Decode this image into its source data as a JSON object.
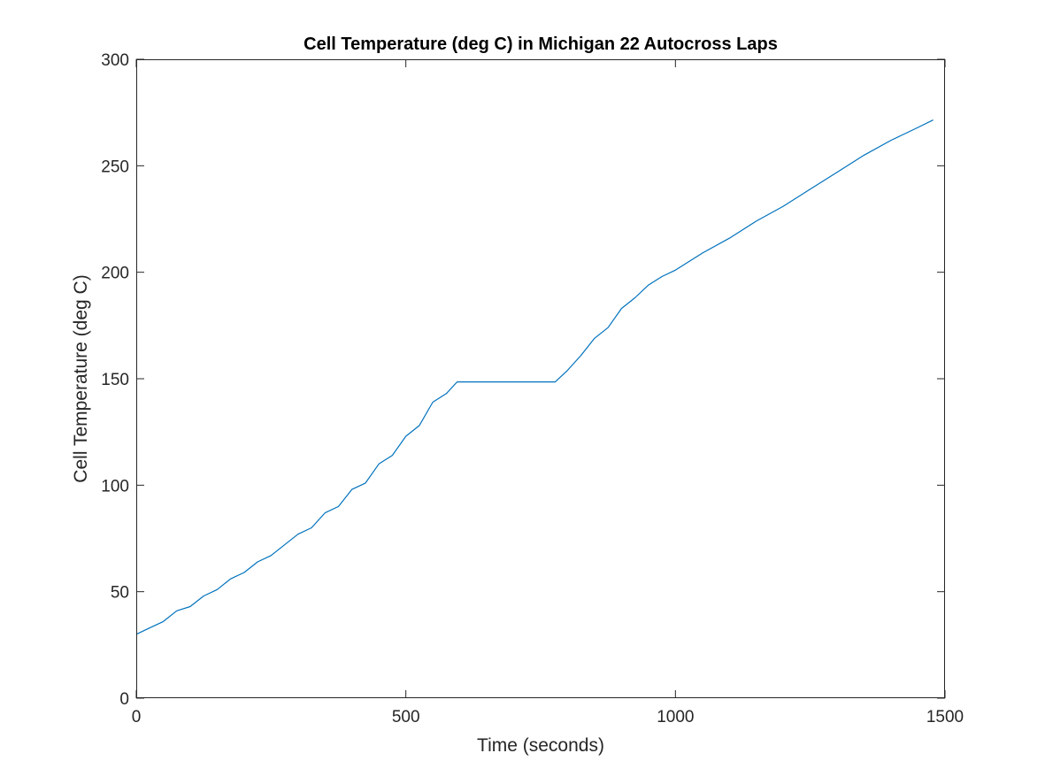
{
  "chart_data": {
    "type": "line",
    "title": "Cell Temperature (deg C) in Michigan 22 Autocross Laps",
    "xlabel": "Time (seconds)",
    "ylabel": "Cell Temperature (deg C)",
    "xlim": [
      0,
      1500
    ],
    "ylim": [
      0,
      300
    ],
    "xticks": [
      0,
      500,
      1000,
      1500
    ],
    "yticks": [
      0,
      50,
      100,
      150,
      200,
      250,
      300
    ],
    "grid": false,
    "box": true,
    "series": [
      {
        "color": "#0072BD",
        "x": [
          0,
          25,
          50,
          75,
          100,
          125,
          150,
          175,
          200,
          225,
          250,
          275,
          300,
          325,
          350,
          375,
          400,
          425,
          450,
          475,
          500,
          525,
          550,
          575,
          595,
          650,
          700,
          777,
          800,
          825,
          850,
          875,
          900,
          925,
          950,
          975,
          1000,
          1050,
          1100,
          1150,
          1200,
          1250,
          1300,
          1350,
          1400,
          1450,
          1478
        ],
        "y": [
          30,
          33,
          36,
          41,
          43,
          48,
          51,
          56,
          59,
          64,
          67,
          72,
          77,
          80,
          87,
          90,
          98,
          101,
          110,
          114,
          123,
          128,
          139,
          143,
          148.5,
          148.5,
          148.5,
          148.5,
          154,
          161,
          169,
          174,
          183,
          188,
          194,
          198,
          201,
          209,
          216,
          224,
          231,
          239,
          247,
          255,
          262,
          268,
          271.5
        ]
      }
    ]
  }
}
